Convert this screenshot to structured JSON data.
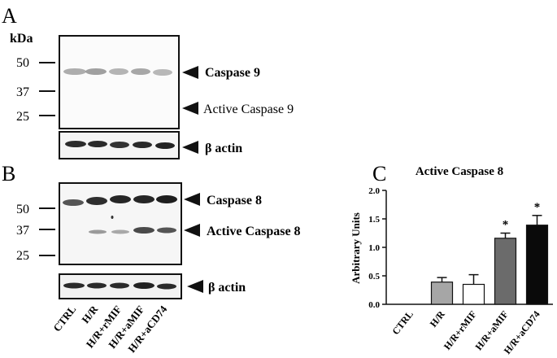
{
  "panel_a": {
    "letter": "A",
    "unit": "kDa",
    "markers": [
      "50",
      "37",
      "25"
    ],
    "labels": [
      "Caspase 9",
      "Active Caspase 9"
    ],
    "loading_label": "β actin"
  },
  "panel_b": {
    "letter": "B",
    "markers": [
      "50",
      "37",
      "25"
    ],
    "labels": [
      "Caspase 8",
      "Active Caspase 8"
    ],
    "loading_label": "β actin",
    "lanes": [
      "CTRL",
      "H/R",
      "H/R+rMIF",
      "H/R+aMIF",
      "H/R+aCD74"
    ]
  },
  "panel_c": {
    "letter": "C"
  },
  "chart_data": {
    "type": "bar",
    "title": "Active Caspase 8",
    "xlabel": "",
    "ylabel": "Arbitrary Units",
    "ylim": [
      0,
      2.0
    ],
    "yticks": [
      "0.0",
      "0.5",
      "1.0",
      "1.5",
      "2.0"
    ],
    "categories": [
      "CTRL",
      "H/R",
      "H/R+rMIF",
      "H/R+aMIF",
      "H/R+aCD74"
    ],
    "values": [
      0,
      0.39,
      0.35,
      1.16,
      1.39
    ],
    "errors": [
      0,
      0.08,
      0.17,
      0.09,
      0.17
    ],
    "colors": [
      "#ffffff",
      "#a6a6a6",
      "#ffffff",
      "#6b6b6b",
      "#0a0a0a"
    ],
    "significance": [
      "",
      "",
      "",
      "*",
      "*"
    ],
    "grid": false
  }
}
